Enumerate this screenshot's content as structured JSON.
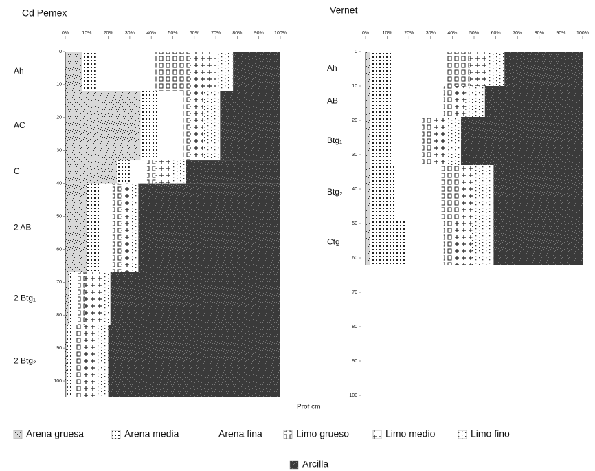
{
  "legend": {
    "items": [
      {
        "name": "Arena gruesa",
        "color": "#d8d8d8",
        "pattern": "speckle"
      },
      {
        "name": "Arena media",
        "color": "#ffffff",
        "pattern": "dots"
      },
      {
        "name": "Arena fina",
        "color": "#ffffff",
        "pattern": "none"
      },
      {
        "name": "Limo grueso",
        "color": "#ffffff",
        "pattern": "squares"
      },
      {
        "name": "Limo medio",
        "color": "#ffffff",
        "pattern": "plus"
      },
      {
        "name": "Limo fino",
        "color": "#ffffff",
        "pattern": "fine-dots"
      },
      {
        "name": "Arcilla",
        "color": "#3a3a3a",
        "pattern": "speckle-dark"
      }
    ]
  },
  "chart_data": [
    {
      "type": "soil-profile",
      "title": "Cd Pemex",
      "y_label": "Prof cm",
      "xlim": [
        0,
        100
      ],
      "xticks": [
        {
          "value": 0,
          "label": "0%"
        },
        {
          "value": 10,
          "label": "10%"
        },
        {
          "value": 20,
          "label": "20%"
        },
        {
          "value": 30,
          "label": "30%"
        },
        {
          "value": 40,
          "label": "40%"
        },
        {
          "value": 50,
          "label": "50%"
        },
        {
          "value": 60,
          "label": "60%"
        },
        {
          "value": 70,
          "label": "70%"
        },
        {
          "value": 80,
          "label": "80%"
        },
        {
          "value": 90,
          "label": "90%"
        },
        {
          "value": 100,
          "label": "100%"
        }
      ],
      "ylim": [
        0,
        105
      ],
      "yticks": [
        0,
        10,
        20,
        30,
        40,
        50,
        60,
        70,
        80,
        90,
        100
      ],
      "layers": [
        {
          "label": "Ah",
          "depth": [
            0,
            12
          ],
          "values": [
            8,
            6,
            28,
            16,
            12,
            8,
            22
          ]
        },
        {
          "label": "AC",
          "depth": [
            12,
            33
          ],
          "values": [
            35,
            8,
            12,
            3,
            6,
            8,
            28
          ]
        },
        {
          "label": "C",
          "depth": [
            33,
            40
          ],
          "values": [
            24,
            6,
            8,
            4,
            8,
            6,
            44
          ]
        },
        {
          "label": "2 AB",
          "depth": [
            40,
            67
          ],
          "values": [
            10,
            6,
            6,
            4,
            4,
            4,
            66
          ]
        },
        {
          "label": "2 Btg₁",
          "depth": [
            67,
            83
          ],
          "values": [
            2,
            2,
            2,
            3,
            9,
            3,
            79
          ]
        },
        {
          "label": "2 Btg₂",
          "depth": [
            83,
            105
          ],
          "values": [
            1,
            2,
            2,
            3,
            6,
            6,
            80
          ]
        }
      ]
    },
    {
      "type": "soil-profile",
      "title": "Vernet",
      "xlim": [
        0,
        100
      ],
      "xticks": [
        {
          "value": 0,
          "label": "0%"
        },
        {
          "value": 10,
          "label": "10%"
        },
        {
          "value": 20,
          "label": "20%"
        },
        {
          "value": 30,
          "label": "30%"
        },
        {
          "value": 40,
          "label": "40%"
        },
        {
          "value": 50,
          "label": "50%"
        },
        {
          "value": 60,
          "label": "60%"
        },
        {
          "value": 70,
          "label": "70%"
        },
        {
          "value": 80,
          "label": "80%"
        },
        {
          "value": 90,
          "label": "90%"
        },
        {
          "value": 100,
          "label": "100%"
        }
      ],
      "ylim": [
        0,
        100
      ],
      "yticks": [
        0,
        10,
        20,
        30,
        40,
        50,
        60,
        70,
        80,
        90,
        100
      ],
      "layers": [
        {
          "label": "Ah",
          "depth": [
            0,
            10
          ],
          "values": [
            2,
            10,
            25,
            11,
            8,
            8,
            36
          ]
        },
        {
          "label": "AB",
          "depth": [
            10,
            19
          ],
          "values": [
            2,
            10,
            24,
            4,
            6,
            9,
            45
          ]
        },
        {
          "label": "Btg₁",
          "depth": [
            19,
            33
          ],
          "values": [
            2,
            10,
            14,
            5,
            7,
            6,
            56
          ]
        },
        {
          "label": "Btg₂",
          "depth": [
            33,
            49
          ],
          "values": [
            2,
            12,
            21,
            8,
            7,
            9,
            41
          ]
        },
        {
          "label": "Ctg",
          "depth": [
            49,
            62
          ],
          "values": [
            2,
            17,
            17,
            5,
            8,
            10,
            41
          ]
        }
      ]
    }
  ]
}
